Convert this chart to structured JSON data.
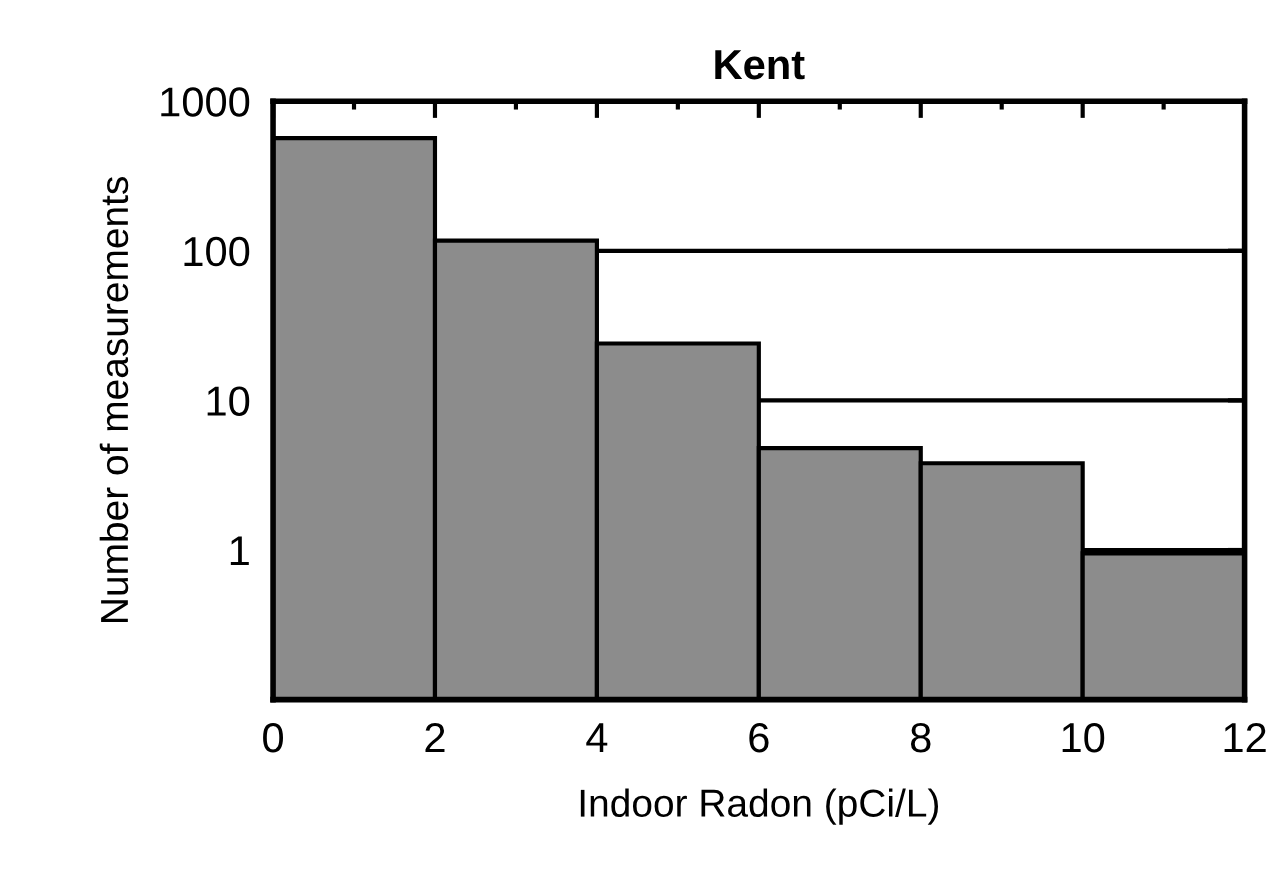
{
  "chart_data": {
    "type": "histogram",
    "title": "Kent",
    "xlabel": "Indoor Radon (pCi/L)",
    "ylabel": "Number of measurements",
    "bins": [
      0,
      2,
      4,
      6,
      8,
      10,
      12
    ],
    "values": [
      566,
      117,
      24,
      4.8,
      3.8,
      0.95
    ],
    "color": "#8c8c8c",
    "log": "y",
    "grid": "y",
    "xlim": [
      0,
      12
    ],
    "xticks": [
      0,
      2,
      4,
      6,
      8,
      10,
      12
    ],
    "ylim": [
      0.1,
      1000
    ],
    "yticks": [
      {
        "value": 0.1,
        "label": null
      },
      1,
      10,
      100,
      1000
    ]
  }
}
